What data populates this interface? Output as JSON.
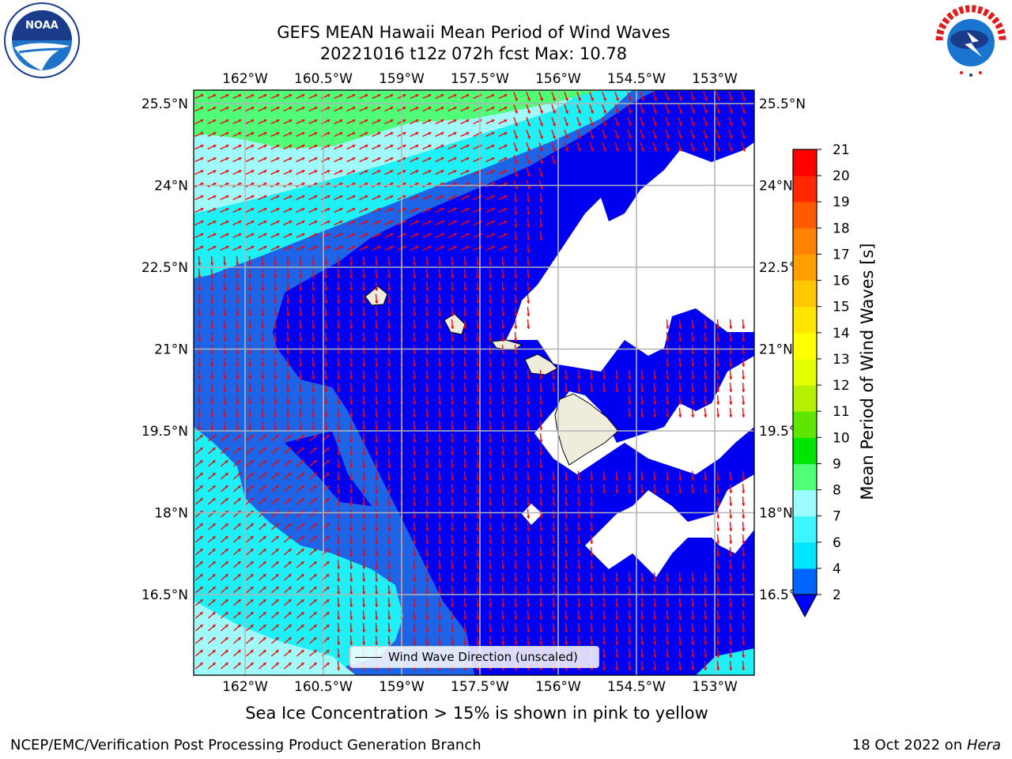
{
  "title": {
    "line1": "GEFS MEAN Hawaii Mean Period of Wind Waves",
    "line2": "20221016 t12z 072h fcst   Max: 10.78"
  },
  "longitude_ticks": [
    "162°W",
    "160.5°W",
    "159°W",
    "157.5°W",
    "156°W",
    "154.5°W",
    "153°W"
  ],
  "latitude_ticks": [
    "25.5°N",
    "24°N",
    "22.5°N",
    "21°N",
    "19.5°N",
    "18°N",
    "16.5°N"
  ],
  "legend": {
    "label": "Wind Wave Direction (unscaled)"
  },
  "colorbar": {
    "label": "Mean Period of Wind Waves [s]",
    "ticks": [
      "2",
      "4",
      "6",
      "7",
      "8",
      "9",
      "10",
      "11",
      "12",
      "13",
      "14",
      "15",
      "16",
      "17",
      "18",
      "19",
      "20",
      "21"
    ],
    "colors": [
      "#0064ff",
      "#00e6ff",
      "#3cf5ff",
      "#9bfcff",
      "#50ff78",
      "#00e600",
      "#5fe600",
      "#b4f000",
      "#e6ff00",
      "#ffff00",
      "#ffe600",
      "#ffc800",
      "#ffa000",
      "#ff8200",
      "#ff5a00",
      "#ff2800",
      "#ff0000"
    ],
    "extend_color": "#0000ff"
  },
  "map_colors": {
    "deep_blue": "#0000f0",
    "mid_blue": "#1e64e6",
    "cyan": "#1ef0f5",
    "light_cyan": "#a0fafa",
    "green": "#50ff78",
    "land": "#efecdc",
    "arrow": "#ff0000",
    "grid": "#b4b4b4"
  },
  "subcaption": "Sea Ice Concentration > 15% is shown in pink to yellow",
  "footer": {
    "left": "NCEP/EMC/Verification Post Processing Product Generation Branch",
    "right_prefix": "18 Oct 2022 on ",
    "right_host": "Hera"
  }
}
